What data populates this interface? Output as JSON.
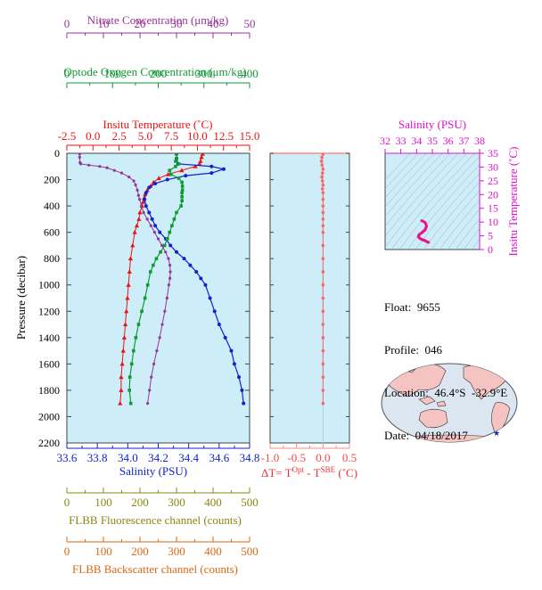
{
  "info": {
    "float": "Float:  9655",
    "profile": "Profile:  046",
    "location": "Location:  46.4°S  -32.9°E",
    "date": "Date:  04/18/2017"
  },
  "colors": {
    "nitrate": "#993399",
    "oxygen": "#119933",
    "temperature": "#ee1111",
    "salinity": "#1122cc",
    "fluorescence": "#888811",
    "backscatter": "#dd6611",
    "delta": "#ff6666",
    "ts_axis": "#dd11cc",
    "plot_bg": "#cdeef8",
    "map_land": "#f6c3c3",
    "map_ocean": "#dce6f0",
    "frame": "#444444"
  },
  "chart_data": [
    {
      "type": "line",
      "name": "main-profile",
      "ylabel": "Pressure (decibar)",
      "ylim": [
        2200,
        0
      ],
      "yticks": [
        "0",
        "200",
        "400",
        "600",
        "800",
        "1000",
        "1200",
        "1400",
        "1600",
        "1800",
        "2000",
        "2200"
      ],
      "axes": {
        "nitrate": {
          "label": "Nitrate Concentration (μm/kg)",
          "range": [
            0,
            50
          ],
          "ticks": [
            "0",
            "10",
            "20",
            "30",
            "40",
            "50"
          ]
        },
        "oxygen": {
          "label": "Optode Oxygen Concentration (μm/kg)",
          "range": [
            0,
            400
          ],
          "ticks": [
            "0",
            "100",
            "200",
            "300",
            "400"
          ]
        },
        "temperature": {
          "label": "Insitu Temperature (˚C)",
          "range": [
            -2.5,
            15
          ],
          "ticks": [
            "-2.5",
            "0.0",
            "2.5",
            "5.0",
            "7.5",
            "10.0",
            "12.5",
            "15.0"
          ]
        },
        "salinity": {
          "label": "Salinity (PSU)",
          "range": [
            33.6,
            34.8
          ],
          "ticks": [
            "33.6",
            "33.8",
            "34.0",
            "34.2",
            "34.4",
            "34.6",
            "34.8"
          ]
        },
        "fluorescence": {
          "label": "FLBB Fluorescence channel (counts)",
          "range": [
            0,
            500
          ],
          "ticks": [
            "0",
            "100",
            "200",
            "300",
            "400",
            "500"
          ]
        },
        "backscatter": {
          "label": "FLBB Backscatter channel (counts)",
          "range": [
            0,
            500
          ],
          "ticks": [
            "0",
            "100",
            "200",
            "300",
            "400",
            "500"
          ]
        }
      },
      "series": [
        {
          "key": "temperature",
          "marker": "triangle",
          "points": [
            [
              10.5,
              5
            ],
            [
              10.4,
              30
            ],
            [
              10.3,
              60
            ],
            [
              10.2,
              80
            ],
            [
              9.8,
              100
            ],
            [
              8.5,
              130
            ],
            [
              7.2,
              160
            ],
            [
              6.3,
              190
            ],
            [
              5.8,
              220
            ],
            [
              5.5,
              250
            ],
            [
              5.2,
              280
            ],
            [
              5.0,
              310
            ],
            [
              4.9,
              340
            ],
            [
              4.8,
              370
            ],
            [
              4.7,
              400
            ],
            [
              4.5,
              450
            ],
            [
              4.4,
              500
            ],
            [
              4.2,
              550
            ],
            [
              4.0,
              600
            ],
            [
              3.8,
              700
            ],
            [
              3.6,
              800
            ],
            [
              3.5,
              900
            ],
            [
              3.4,
              1000
            ],
            [
              3.3,
              1100
            ],
            [
              3.2,
              1200
            ],
            [
              3.1,
              1300
            ],
            [
              3.0,
              1400
            ],
            [
              2.9,
              1500
            ],
            [
              2.8,
              1600
            ],
            [
              2.7,
              1700
            ],
            [
              2.7,
              1800
            ],
            [
              2.6,
              1900
            ]
          ]
        },
        {
          "key": "salinity",
          "marker": "circle",
          "points": [
            [
              34.32,
              5
            ],
            [
              34.32,
              40
            ],
            [
              34.33,
              80
            ],
            [
              34.55,
              100
            ],
            [
              34.63,
              120
            ],
            [
              34.55,
              150
            ],
            [
              34.38,
              170
            ],
            [
              34.26,
              200
            ],
            [
              34.18,
              230
            ],
            [
              34.14,
              260
            ],
            [
              34.12,
              300
            ],
            [
              34.11,
              350
            ],
            [
              34.12,
              400
            ],
            [
              34.14,
              450
            ],
            [
              34.16,
              500
            ],
            [
              34.18,
              550
            ],
            [
              34.21,
              600
            ],
            [
              34.25,
              650
            ],
            [
              34.28,
              700
            ],
            [
              34.32,
              750
            ],
            [
              34.37,
              800
            ],
            [
              34.41,
              850
            ],
            [
              34.45,
              900
            ],
            [
              34.48,
              950
            ],
            [
              34.51,
              1000
            ],
            [
              34.54,
              1100
            ],
            [
              34.57,
              1200
            ],
            [
              34.6,
              1300
            ],
            [
              34.64,
              1400
            ],
            [
              34.68,
              1500
            ],
            [
              34.7,
              1600
            ],
            [
              34.73,
              1700
            ],
            [
              34.75,
              1800
            ],
            [
              34.76,
              1900
            ]
          ]
        },
        {
          "key": "oxygen",
          "marker": "square",
          "points": [
            [
              240,
              5
            ],
            [
              240,
              40
            ],
            [
              238,
              60
            ],
            [
              245,
              80
            ],
            [
              238,
              100
            ],
            [
              225,
              130
            ],
            [
              228,
              160
            ],
            [
              245,
              190
            ],
            [
              252,
              220
            ],
            [
              253,
              250
            ],
            [
              253,
              280
            ],
            [
              252,
              300
            ],
            [
              252,
              330
            ],
            [
              252,
              360
            ],
            [
              250,
              400
            ],
            [
              240,
              450
            ],
            [
              235,
              500
            ],
            [
              230,
              550
            ],
            [
              225,
              600
            ],
            [
              220,
              650
            ],
            [
              214,
              700
            ],
            [
              205,
              750
            ],
            [
              196,
              800
            ],
            [
              189,
              850
            ],
            [
              183,
              900
            ],
            [
              177,
              1000
            ],
            [
              171,
              1100
            ],
            [
              164,
              1200
            ],
            [
              157,
              1300
            ],
            [
              151,
              1400
            ],
            [
              146,
              1500
            ],
            [
              142,
              1600
            ],
            [
              138,
              1700
            ],
            [
              137,
              1800
            ],
            [
              140,
              1900
            ]
          ]
        },
        {
          "key": "nitrate",
          "marker": "circle",
          "points": [
            [
              3.5,
              5
            ],
            [
              3.5,
              30
            ],
            [
              3.6,
              70
            ],
            [
              3.8,
              80
            ],
            [
              6,
              90
            ],
            [
              9,
              100
            ],
            [
              11,
              110
            ],
            [
              13,
              130
            ],
            [
              15,
              150
            ],
            [
              17,
              180
            ],
            [
              18.3,
              210
            ],
            [
              18.8,
              240
            ],
            [
              19.3,
              280
            ],
            [
              19.6,
              320
            ],
            [
              19.9,
              350
            ],
            [
              20.4,
              400
            ],
            [
              21,
              450
            ],
            [
              22,
              500
            ],
            [
              23,
              550
            ],
            [
              24,
              600
            ],
            [
              25,
              650
            ],
            [
              26,
              700
            ],
            [
              27,
              750
            ],
            [
              27.8,
              800
            ],
            [
              28.2,
              850
            ],
            [
              28.3,
              900
            ],
            [
              28.2,
              950
            ],
            [
              27.9,
              1000
            ],
            [
              27.4,
              1100
            ],
            [
              26.8,
              1200
            ],
            [
              26.1,
              1300
            ],
            [
              25.4,
              1400
            ],
            [
              24.6,
              1500
            ],
            [
              23.8,
              1600
            ],
            [
              23.1,
              1700
            ],
            [
              22.6,
              1800
            ],
            [
              22.1,
              1900
            ]
          ]
        }
      ]
    },
    {
      "type": "scatter",
      "name": "delta-T",
      "xlabel": "ΔT= T^Opt - T^SBE (˚C)",
      "xlim": [
        -1.0,
        0.5
      ],
      "xticks": [
        "-1.0",
        "-0.5",
        "0.0",
        "0.5"
      ],
      "ylim": [
        2200,
        0
      ],
      "x": [
        0.0,
        -0.02,
        -0.03,
        -0.02,
        0.0,
        -0.01,
        -0.02,
        -0.01,
        0.0,
        -0.01,
        0.0,
        0.0,
        0.0,
        0.0,
        0.0,
        0.0,
        0.0,
        0.0,
        0.0,
        0.0,
        0.0,
        0.0,
        0.0,
        0.0,
        0.0,
        0.0,
        0.0,
        0.0,
        0.0,
        0.0
      ],
      "y": [
        5,
        30,
        60,
        90,
        120,
        150,
        180,
        210,
        240,
        270,
        300,
        350,
        400,
        450,
        500,
        550,
        600,
        700,
        800,
        900,
        1000,
        1100,
        1200,
        1300,
        1400,
        1500,
        1600,
        1700,
        1800,
        1900
      ]
    },
    {
      "type": "scatter",
      "name": "TS-diagram",
      "xlabel": "Salinity (PSU)",
      "ylabel": "Insitu Temperature (˚C)",
      "xlim": [
        32,
        38
      ],
      "ylim": [
        0,
        35
      ],
      "xticks": [
        "32",
        "33",
        "34",
        "35",
        "36",
        "37",
        "38"
      ],
      "yticks": [
        "0",
        "5",
        "10",
        "15",
        "20",
        "25",
        "30",
        "35"
      ],
      "x": [
        34.32,
        34.4,
        34.55,
        34.63,
        34.55,
        34.38,
        34.26,
        34.18,
        34.14,
        34.12,
        34.11,
        34.14,
        34.18,
        34.25,
        34.32,
        34.41,
        34.48,
        34.54,
        34.6,
        34.68,
        34.73,
        34.76
      ],
      "y": [
        10.5,
        10.3,
        9.8,
        8.5,
        7.2,
        6.3,
        5.8,
        5.5,
        5.2,
        5.0,
        4.7,
        4.5,
        4.2,
        3.9,
        3.7,
        3.5,
        3.4,
        3.2,
        3.0,
        2.8,
        2.7,
        2.6
      ]
    }
  ]
}
